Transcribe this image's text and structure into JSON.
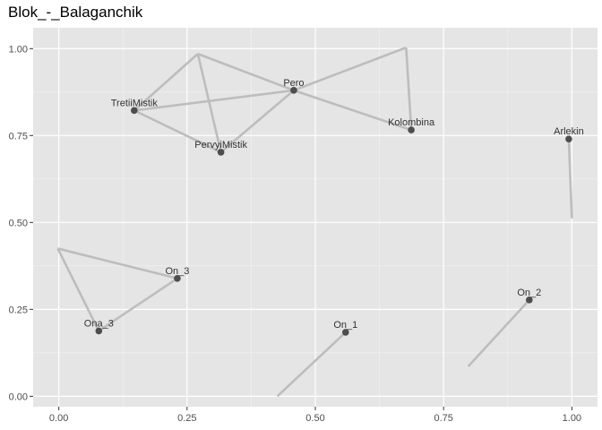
{
  "chart_data": {
    "type": "network",
    "title": "Blok_-_Balaganchik",
    "xlabel": "",
    "ylabel": "",
    "xlim": [
      -0.05,
      1.05
    ],
    "ylim": [
      -0.03,
      1.06
    ],
    "x_ticks": [
      0.0,
      0.25,
      0.5,
      0.75,
      1.0
    ],
    "x_tick_labels": [
      "0.00",
      "0.25",
      "0.50",
      "0.75",
      "1.00"
    ],
    "y_ticks": [
      0.0,
      0.25,
      0.5,
      0.75,
      1.0
    ],
    "y_tick_labels": [
      "0.00",
      "0.25",
      "0.50",
      "0.75",
      "1.00"
    ],
    "grid": true,
    "colors": {
      "panel": "#e5e5e5",
      "grid_major": "#ffffff",
      "grid_minor": "#f2f2f2",
      "edge": "#bdbdbd",
      "node": "#4d4d4d"
    },
    "nodes": [
      {
        "label": "TretiiMistik",
        "x": 0.147,
        "y": 0.822
      },
      {
        "label": "Pero",
        "x": 0.458,
        "y": 0.88
      },
      {
        "label": "PervyiMistik",
        "x": 0.316,
        "y": 0.702
      },
      {
        "label": "Kolombina",
        "x": 0.687,
        "y": 0.766
      },
      {
        "label": "Arlekin",
        "x": 0.994,
        "y": 0.74
      },
      {
        "label": "On_3",
        "x": 0.231,
        "y": 0.339
      },
      {
        "label": "Ona_3",
        "x": 0.078,
        "y": 0.188
      },
      {
        "label": "On_1",
        "x": 0.559,
        "y": 0.184
      },
      {
        "label": "On_2",
        "x": 0.917,
        "y": 0.277
      }
    ],
    "edges": [
      [
        [
          0.147,
          0.822
        ],
        [
          0.271,
          0.985
        ]
      ],
      [
        [
          0.271,
          0.985
        ],
        [
          0.316,
          0.702
        ]
      ],
      [
        [
          0.147,
          0.822
        ],
        [
          0.458,
          0.88
        ]
      ],
      [
        [
          0.147,
          0.822
        ],
        [
          0.316,
          0.702
        ]
      ],
      [
        [
          0.316,
          0.702
        ],
        [
          0.458,
          0.88
        ]
      ],
      [
        [
          0.271,
          0.985
        ],
        [
          0.458,
          0.88
        ]
      ],
      [
        [
          0.458,
          0.88
        ],
        [
          0.677,
          1.003
        ]
      ],
      [
        [
          0.677,
          1.003
        ],
        [
          0.687,
          0.766
        ]
      ],
      [
        [
          0.458,
          0.88
        ],
        [
          0.687,
          0.766
        ]
      ],
      [
        [
          0.994,
          0.74
        ],
        [
          1.0,
          0.512
        ]
      ],
      [
        [
          -0.002,
          0.425
        ],
        [
          0.231,
          0.339
        ]
      ],
      [
        [
          -0.002,
          0.425
        ],
        [
          0.078,
          0.188
        ]
      ],
      [
        [
          0.078,
          0.188
        ],
        [
          0.231,
          0.339
        ]
      ],
      [
        [
          0.426,
          0.0
        ],
        [
          0.559,
          0.184
        ]
      ],
      [
        [
          0.798,
          0.086
        ],
        [
          0.917,
          0.277
        ]
      ]
    ]
  }
}
